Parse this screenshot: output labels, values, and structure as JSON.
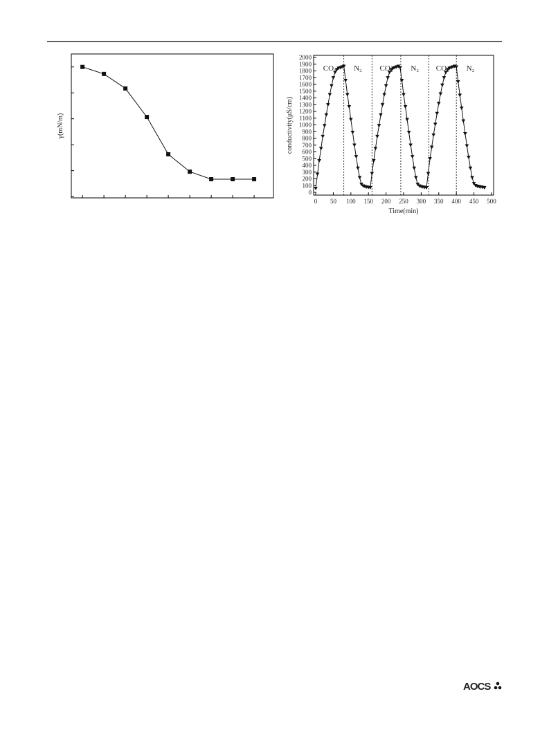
{
  "chart_data": [
    {
      "type": "line",
      "marker": "square",
      "color": "#111",
      "y_label": "γ(mN/m)",
      "tick_labels": false,
      "x": [
        1,
        2,
        3,
        4,
        5,
        6,
        7,
        8,
        9
      ],
      "values": [
        5.0,
        4.73,
        4.17,
        3.07,
        1.63,
        0.96,
        0.67,
        0.67,
        0.67
      ],
      "xlim": [
        0.48,
        9.9
      ],
      "ylim": [
        -0.05,
        5.5
      ],
      "xticks": [
        1,
        2,
        3,
        4,
        5,
        6,
        7,
        8,
        9
      ],
      "yticks": [
        0,
        1,
        2,
        3,
        4,
        5
      ]
    },
    {
      "type": "line",
      "marker": "triangle-down",
      "color": "#111",
      "y_label": "conductivity(μS/cm)",
      "x_label": "Time(min)",
      "tick_labels": true,
      "x": [
        0,
        5,
        10,
        15,
        20,
        25,
        30,
        35,
        40,
        45,
        50,
        55,
        60,
        65,
        70,
        75,
        80,
        85,
        90,
        95,
        100,
        105,
        110,
        115,
        120,
        125,
        130,
        135,
        140,
        145,
        150,
        155,
        160,
        165,
        170,
        175,
        180,
        185,
        190,
        195,
        200,
        205,
        210,
        215,
        220,
        225,
        230,
        235,
        240,
        245,
        250,
        255,
        260,
        265,
        270,
        275,
        280,
        285,
        290,
        295,
        300,
        305,
        310,
        315,
        320,
        325,
        330,
        335,
        340,
        345,
        350,
        355,
        360,
        365,
        370,
        375,
        380,
        385,
        390,
        395,
        400,
        405,
        410,
        415,
        420,
        425,
        430,
        435,
        440,
        445,
        450,
        455,
        460,
        465,
        470,
        475,
        480
      ],
      "values": [
        60,
        270,
        470,
        650,
        830,
        990,
        1150,
        1300,
        1450,
        1580,
        1700,
        1780,
        1820,
        1840,
        1850,
        1860,
        1870,
        1660,
        1450,
        1270,
        1080,
        890,
        700,
        530,
        360,
        220,
        120,
        95,
        85,
        80,
        75,
        70,
        280,
        470,
        650,
        830,
        990,
        1150,
        1300,
        1450,
        1580,
        1700,
        1780,
        1820,
        1840,
        1850,
        1860,
        1870,
        1850,
        1660,
        1450,
        1270,
        1080,
        890,
        700,
        530,
        360,
        220,
        120,
        95,
        85,
        80,
        75,
        70,
        280,
        500,
        670,
        850,
        1010,
        1170,
        1320,
        1460,
        1590,
        1700,
        1780,
        1820,
        1840,
        1850,
        1860,
        1870,
        1860,
        1640,
        1440,
        1250,
        1060,
        870,
        690,
        520,
        360,
        220,
        130,
        100,
        90,
        85,
        80,
        75,
        70
      ],
      "xlim": [
        -6,
        506
      ],
      "ylim": [
        -41,
        2031
      ],
      "xticks": [
        0,
        50,
        100,
        150,
        200,
        250,
        300,
        350,
        400,
        450,
        500
      ],
      "yticks": [
        0,
        100,
        200,
        300,
        400,
        500,
        600,
        700,
        800,
        900,
        1000,
        1100,
        1200,
        1300,
        1400,
        1500,
        1600,
        1700,
        1800,
        1900,
        2000
      ],
      "vlines": [
        80,
        160,
        242,
        322,
        400
      ],
      "annotations": [
        "CO₂",
        "N₂",
        "CO₂",
        "N₂",
        "CO₂",
        "N₂"
      ]
    }
  ],
  "footer": {
    "logo": "AOCS"
  }
}
